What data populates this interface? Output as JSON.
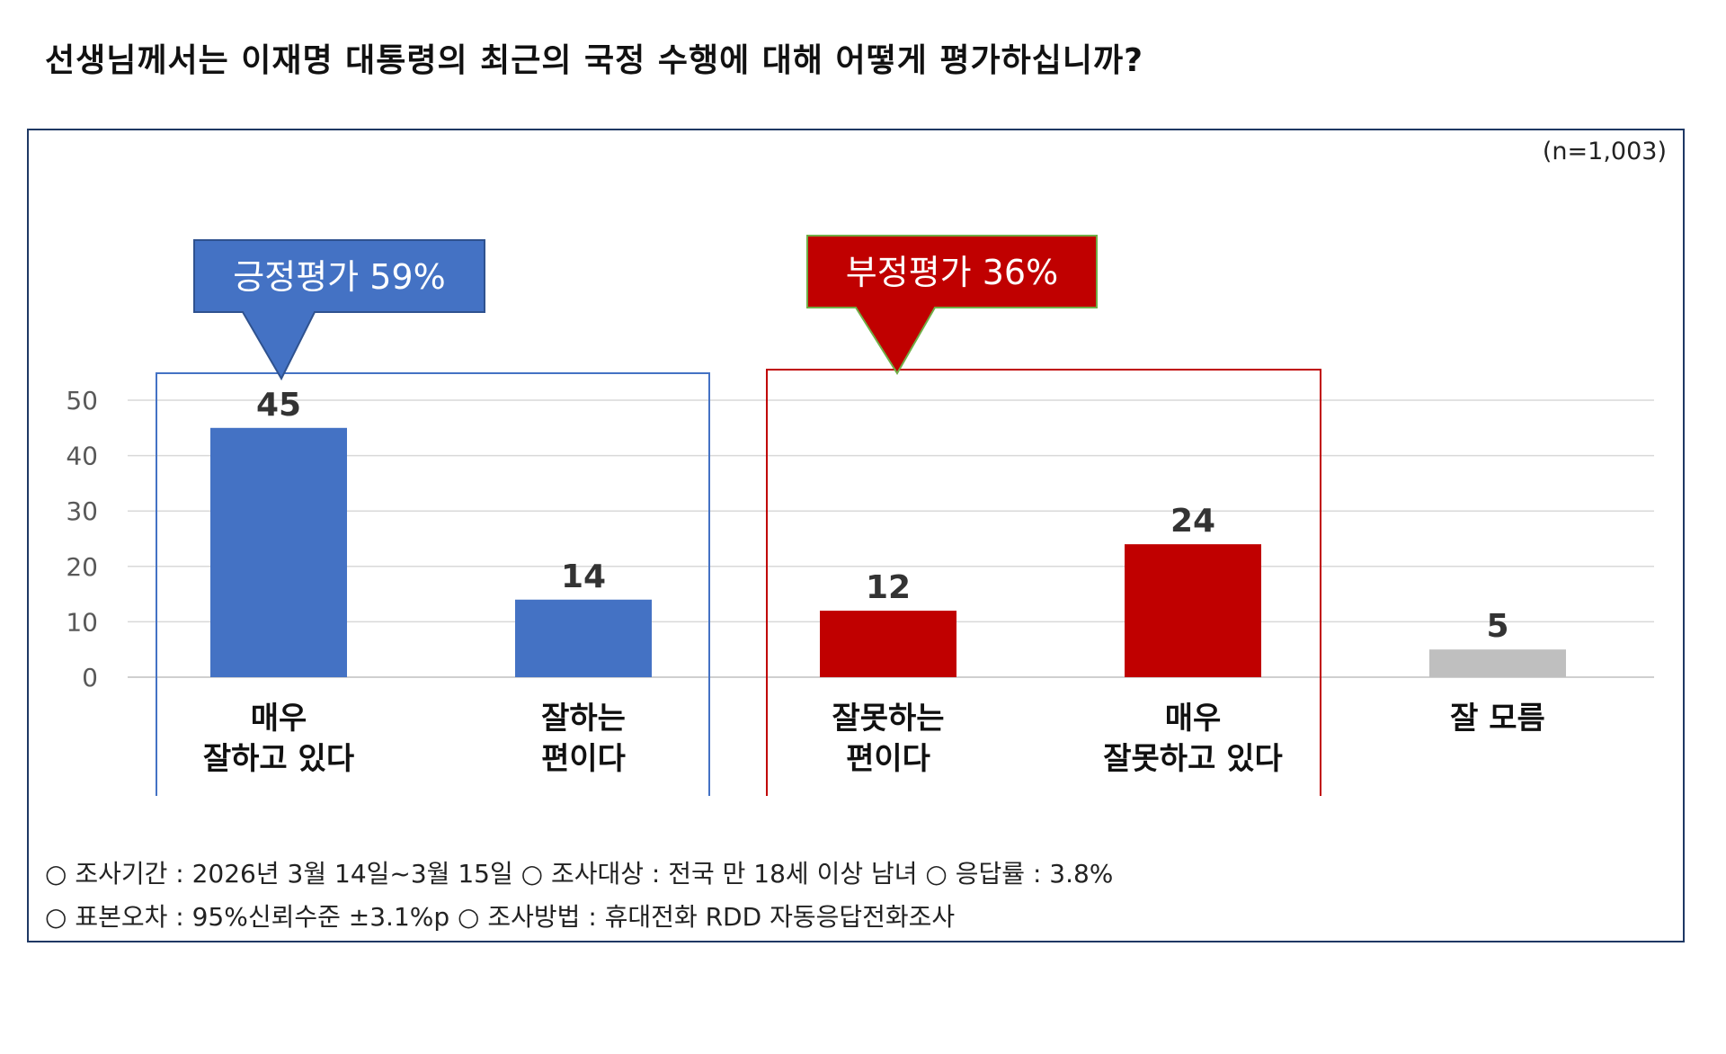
{
  "question": "선생님께서는 이재명 대통령의 최근의 국정 수행에 대해 어떻게 평가하십니까?",
  "sample_size": "(n=1,003)",
  "groups": {
    "positive": {
      "label": "긍정평가 59%",
      "color": "#4472c4"
    },
    "negative": {
      "label": "부정평가 36%",
      "color": "#c00000"
    }
  },
  "chart_data": {
    "type": "bar",
    "categories": [
      [
        "매우",
        "잘하고 있다"
      ],
      [
        "잘하는",
        "편이다"
      ],
      [
        "잘못하는",
        "편이다"
      ],
      [
        "매우",
        "잘못하고 있다"
      ],
      [
        "잘 모름"
      ]
    ],
    "values": [
      45,
      14,
      12,
      24,
      5
    ],
    "data_labels": [
      "45",
      "14",
      "12",
      "24",
      "5"
    ],
    "colors": [
      "#4472c4",
      "#4472c4",
      "#c00000",
      "#c00000",
      "#bfbfbf"
    ],
    "ylim": [
      0,
      50
    ],
    "yticks": [
      "0",
      "10",
      "20",
      "30",
      "40",
      "50"
    ],
    "grid": true,
    "xlabel": "",
    "ylabel": ""
  },
  "methodology": {
    "line1": "○ 조사기간 : 2026년 3월 14일~3월 15일 ○ 조사대상 : 전국 만 18세 이상 남녀 ○ 응답률 : 3.8%",
    "line2": "○ 표본오차 : 95%신뢰수준 ±3.1%p ○ 조사방법 : 휴대전화 RDD 자동응답전화조사"
  }
}
